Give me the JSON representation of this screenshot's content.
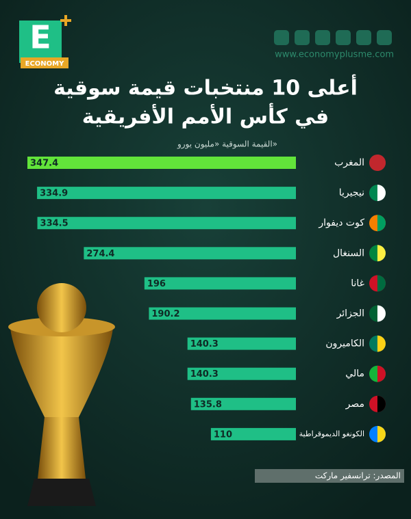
{
  "chart_data": {
    "type": "bar",
    "orientation": "horizontal",
    "title": [
      "أعلى 10 منتخبات قيمة سوقية",
      "في كأس الأمم الأفريقية"
    ],
    "subtitle": "القيمة السوقية «مليون يورو»",
    "categories": [
      "المغرب",
      "نيجيريا",
      "كوت ديفوار",
      "السنغال",
      "غانا",
      "الجزائر",
      "الكاميرون",
      "مالي",
      "مصر",
      "الكونغو الديموقراطية"
    ],
    "values": [
      347.4,
      334.9,
      334.5,
      274.4,
      196,
      190.2,
      140.3,
      140.3,
      135.8,
      110
    ],
    "colors": [
      "#62e43a",
      "#1fbf86",
      "#1fbf86",
      "#1fbf86",
      "#1fbf86",
      "#1fbf86",
      "#1fbf86",
      "#1fbf86",
      "#1fbf86",
      "#1fbf86"
    ],
    "source": "المصدر: ترانسفير ماركت"
  },
  "branding": {
    "letter": "E",
    "name": "ECONOMY",
    "website": "www.economyplusme.com"
  }
}
